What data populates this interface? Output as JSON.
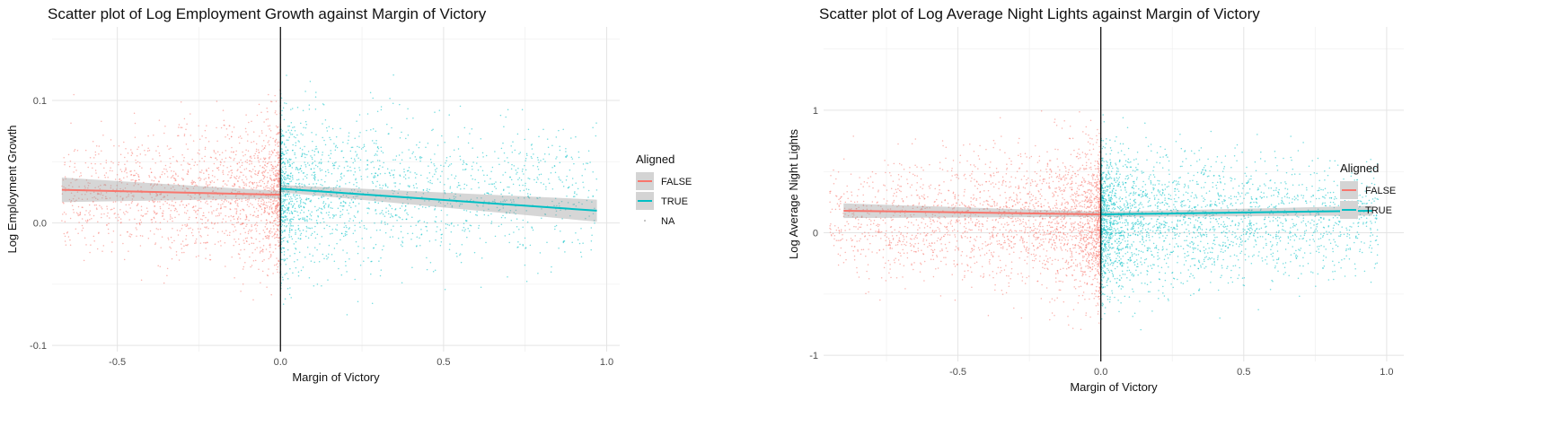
{
  "chart_data": [
    {
      "type": "scatter",
      "title": "Scatter plot of Log Employment Growth against Margin of Victory",
      "xlabel": "Margin of Victory",
      "ylabel": "Log Employment Growth",
      "xlim": [
        -0.7,
        1.04
      ],
      "ylim": [
        -0.105,
        0.16
      ],
      "x_ticks": [
        -0.5,
        0.0,
        0.5,
        1.0
      ],
      "x_tick_labels": [
        "-0.5",
        "0.0",
        "0.5",
        "1.0"
      ],
      "y_ticks": [
        -0.1,
        0.0,
        0.1
      ],
      "y_tick_labels": [
        "-0.1",
        "0.0",
        "0.1"
      ],
      "cutoff_x": 0.0,
      "grid": true,
      "legend": {
        "title": "Aligned",
        "position": "right",
        "entries": [
          {
            "label": "FALSE",
            "color": "#F8766D"
          },
          {
            "label": "TRUE",
            "color": "#00BFC4"
          },
          {
            "label": "NA",
            "color": "#7F7F7F"
          }
        ]
      },
      "series": [
        {
          "name": "FALSE",
          "color": "#F8766D",
          "x_range": [
            -0.67,
            0.0
          ],
          "y_center": 0.024,
          "y_spread": 0.03,
          "fit": [
            [
              -0.67,
              0.027
            ],
            [
              0.0,
              0.023
            ]
          ],
          "ci": [
            [
              -0.67,
              0.037,
              0.017
            ],
            [
              0.0,
              0.026,
              0.02
            ]
          ]
        },
        {
          "name": "TRUE",
          "color": "#00BFC4",
          "x_range": [
            0.0,
            0.97
          ],
          "y_center": 0.025,
          "y_spread": 0.035,
          "fit": [
            [
              0.0,
              0.028
            ],
            [
              0.97,
              0.01
            ]
          ],
          "ci": [
            [
              0.0,
              0.031,
              0.025
            ],
            [
              0.97,
              0.019,
              0.001
            ]
          ]
        }
      ]
    },
    {
      "type": "scatter",
      "title": "Scatter plot of Log Average Night Lights against Margin of Victory",
      "xlabel": "Margin of Victory",
      "ylabel": "Log Average Night Lights",
      "xlim": [
        -0.97,
        1.06
      ],
      "ylim": [
        -1.05,
        1.68
      ],
      "x_ticks": [
        -0.5,
        0.0,
        0.5,
        1.0
      ],
      "x_tick_labels": [
        "-0.5",
        "0.0",
        "0.5",
        "1.0"
      ],
      "y_ticks": [
        -1,
        0,
        1
      ],
      "y_tick_labels": [
        "-1",
        "0",
        "1"
      ],
      "cutoff_x": 0.0,
      "grid": true,
      "legend": {
        "title": "Aligned",
        "position": "right",
        "entries": [
          {
            "label": "FALSE",
            "color": "#F8766D"
          },
          {
            "label": "TRUE",
            "color": "#00BFC4"
          }
        ]
      },
      "series": [
        {
          "name": "FALSE",
          "color": "#F8766D",
          "x_range": [
            -0.95,
            0.0
          ],
          "y_center": 0.1,
          "y_spread": 0.3,
          "fit": [
            [
              -0.9,
              0.18
            ],
            [
              0.0,
              0.15
            ]
          ],
          "ci": [
            [
              -0.9,
              0.24,
              0.12
            ],
            [
              0.0,
              0.17,
              0.13
            ]
          ]
        },
        {
          "name": "TRUE",
          "color": "#00BFC4",
          "x_range": [
            0.0,
            0.97
          ],
          "y_center": 0.1,
          "y_spread": 0.3,
          "fit": [
            [
              0.0,
              0.15
            ],
            [
              0.95,
              0.18
            ]
          ],
          "ci": [
            [
              0.0,
              0.17,
              0.13
            ],
            [
              0.95,
              0.22,
              0.14
            ]
          ]
        }
      ]
    }
  ]
}
